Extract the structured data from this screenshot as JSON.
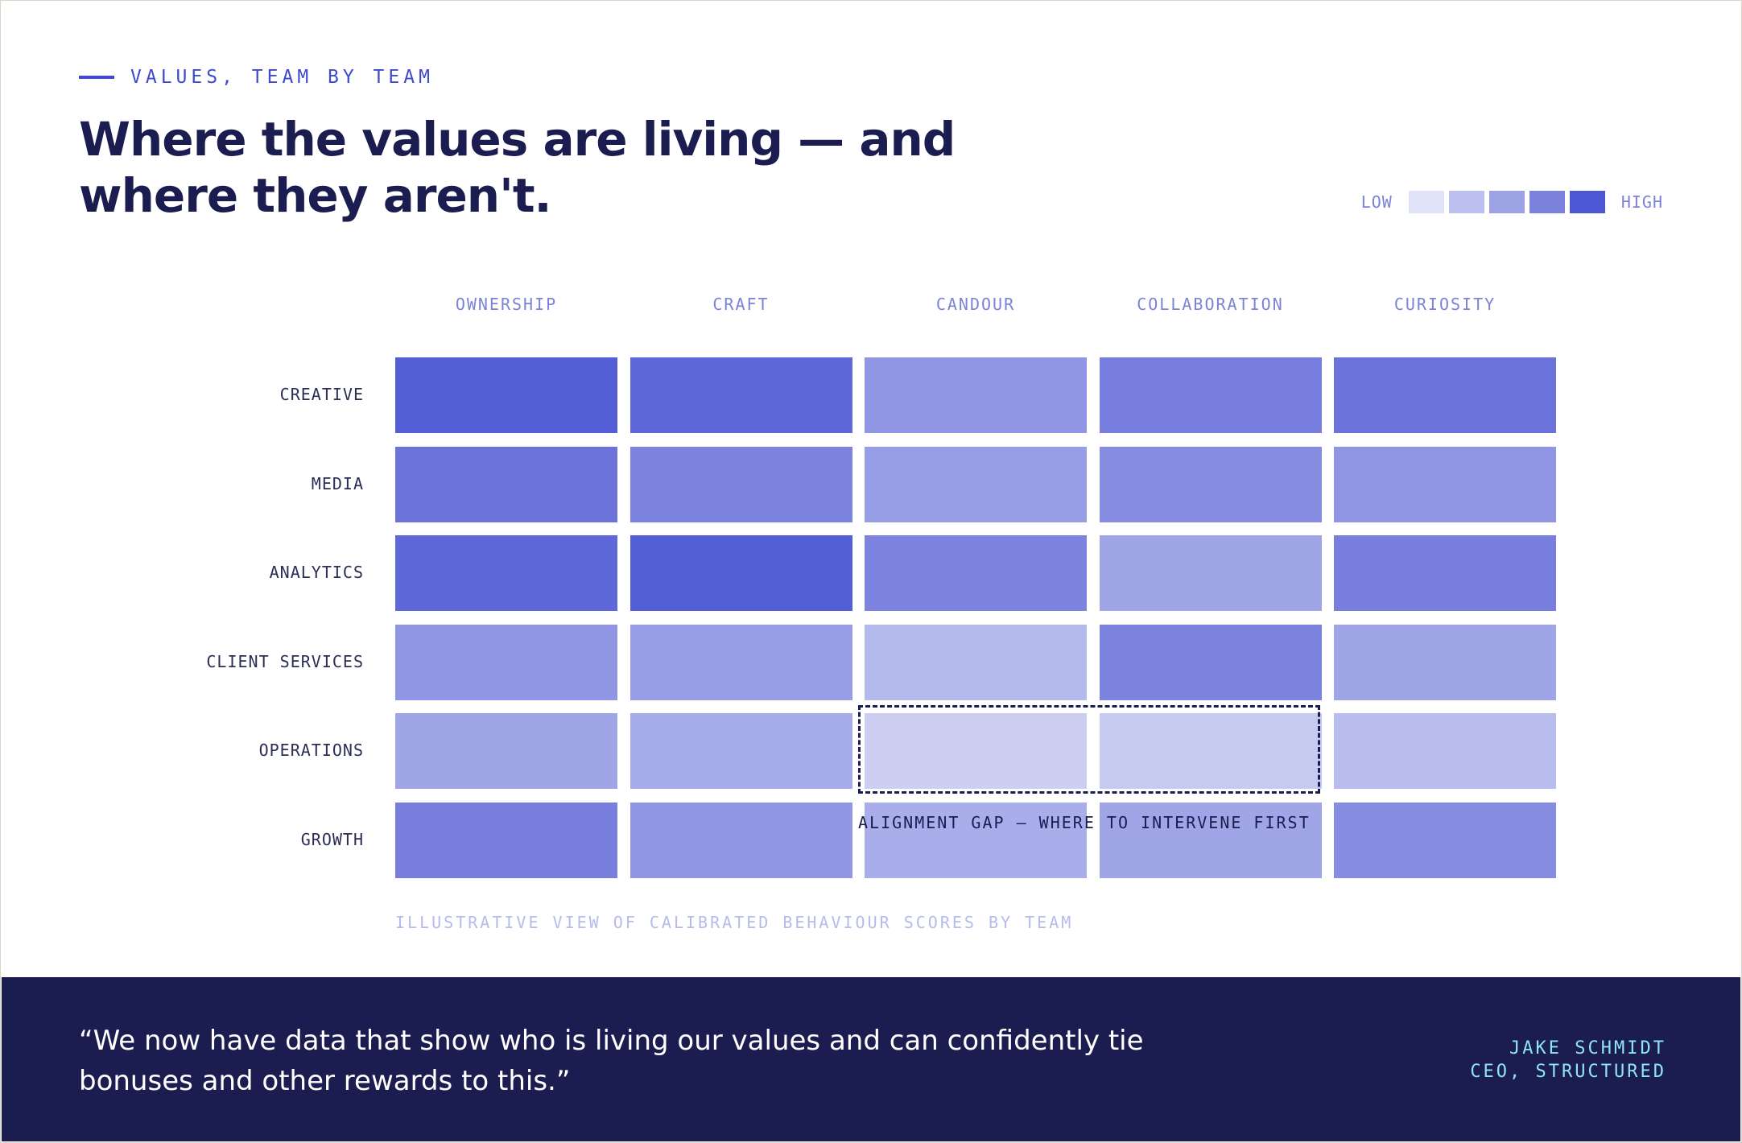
{
  "eyebrow": "VALUES, TEAM BY TEAM",
  "title": "Where the values are living — and where they aren't.",
  "legend": {
    "low_label": "LOW",
    "high_label": "HIGH",
    "colors": [
      "#e0e2f7",
      "#bcc0ee",
      "#9ca2e3",
      "#7a82db",
      "#4d57d4"
    ]
  },
  "chart_data": {
    "type": "heatmap",
    "columns": [
      "OWNERSHIP",
      "CRAFT",
      "CANDOUR",
      "COLLABORATION",
      "CURIOSITY"
    ],
    "rows": [
      "CREATIVE",
      "MEDIA",
      "ANALYTICS",
      "CLIENT SERVICES",
      "OPERATIONS",
      "GROWTH"
    ],
    "values": [
      [
        0.95,
        0.88,
        0.55,
        0.72,
        0.8
      ],
      [
        0.8,
        0.68,
        0.5,
        0.62,
        0.55
      ],
      [
        0.88,
        0.95,
        0.68,
        0.45,
        0.72
      ],
      [
        0.55,
        0.5,
        0.3,
        0.68,
        0.45
      ],
      [
        0.45,
        0.4,
        0.15,
        0.18,
        0.28
      ],
      [
        0.72,
        0.55,
        0.38,
        0.45,
        0.62
      ]
    ],
    "scale": {
      "min_label": "LOW",
      "max_label": "HIGH",
      "low_color": "#e2e4f7",
      "high_color": "#4d57d4"
    },
    "annotation": {
      "text": "ALIGNMENT GAP — WHERE TO INTERVENE FIRST",
      "row": "OPERATIONS",
      "columns": [
        "CANDOUR",
        "COLLABORATION"
      ]
    },
    "caption": "ILLUSTRATIVE VIEW OF CALIBRATED BEHAVIOUR SCORES BY TEAM"
  },
  "footer": {
    "quote": "“We now have data that show who is living our values and can confidently tie bonuses and other rewards to this.”",
    "name": "JAKE SCHMIDT",
    "role": "CEO, STRUCTURED"
  }
}
